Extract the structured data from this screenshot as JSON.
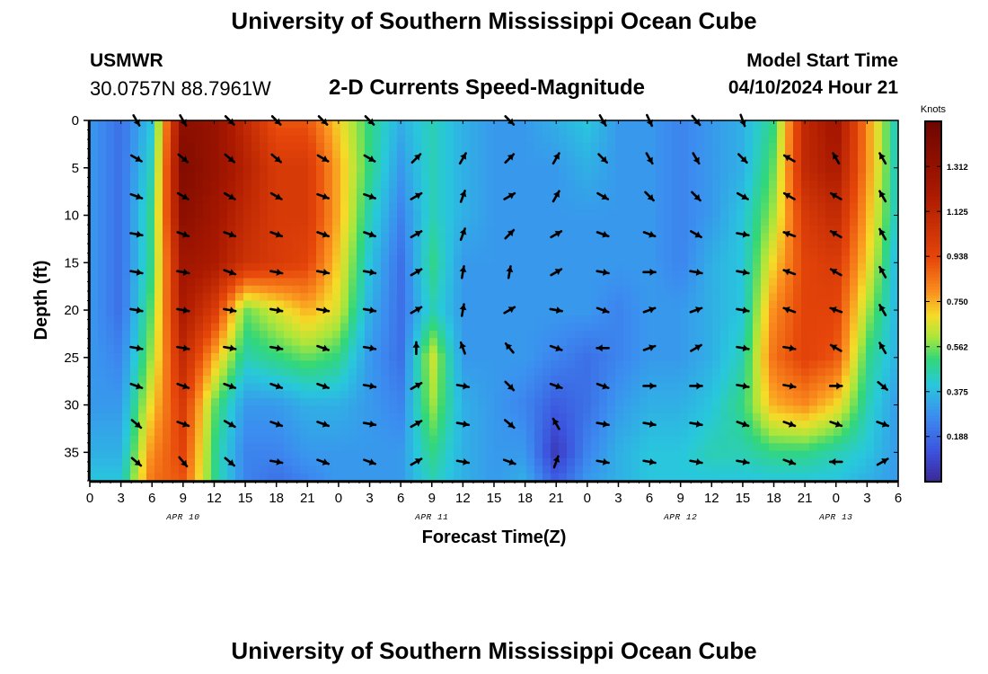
{
  "header": {
    "title": "University of Southern Mississippi Ocean Cube",
    "station_name": "USMWR",
    "station_coords": "30.0757N  88.7961W",
    "product": "2-D Currents Speed-Magnitude",
    "model_start_label": "Model Start Time",
    "model_start_value": "04/10/2024 Hour 21"
  },
  "footer": {
    "title": "University of Southern Mississippi Ocean Cube"
  },
  "colors": {
    "low": "#3b3bb0",
    "mid": "#3ad66e",
    "high": "#7a0e00",
    "arrow": "#000000"
  },
  "chart_data": {
    "type": "heatmap",
    "title": "2-D Currents Speed-Magnitude",
    "xlabel": "Forecast Time(Z)",
    "ylabel": "Depth (ft)",
    "x_tick_labels": [
      "0",
      "3",
      "6",
      "9",
      "12",
      "15",
      "18",
      "21",
      "0",
      "3",
      "6",
      "9",
      "12",
      "15",
      "18",
      "21",
      "0",
      "3",
      "6",
      "9",
      "12",
      "15",
      "18",
      "21",
      "0",
      "3",
      "6"
    ],
    "x_range_hours": [
      0,
      78
    ],
    "date_labels": [
      {
        "label": "APR 10",
        "hour": 9
      },
      {
        "label": "APR 11",
        "hour": 33
      },
      {
        "label": "APR 12",
        "hour": 57
      },
      {
        "label": "APR 13",
        "hour": 72
      }
    ],
    "y_ticks": [
      0,
      5,
      10,
      15,
      20,
      25,
      30,
      35
    ],
    "y_range_ft": [
      0,
      38
    ],
    "colorbar": {
      "unit": "Knots",
      "range": [
        0.0,
        1.5
      ],
      "tick_values": [
        0.188,
        0.375,
        0.562,
        0.75,
        0.938,
        1.125,
        1.312
      ],
      "tick_labels": [
        "0.188",
        "0.375",
        "0.562",
        "0.750",
        "0.938",
        "1.125",
        "1.312"
      ]
    },
    "speed_grid": {
      "x_hours": [
        0,
        3,
        6,
        9,
        12,
        15,
        18,
        21,
        24,
        27,
        30,
        33,
        36,
        39,
        42,
        45,
        48,
        51,
        54,
        57,
        60,
        63,
        66,
        69,
        72,
        75,
        78
      ],
      "depths_ft": [
        0,
        5,
        10,
        15,
        20,
        25,
        30,
        35,
        38
      ],
      "values": [
        [
          0.3,
          0.2,
          0.4,
          1.35,
          1.3,
          1.1,
          0.9,
          0.9,
          0.7,
          0.5,
          0.35,
          0.45,
          0.35,
          0.3,
          0.3,
          0.35,
          0.4,
          0.3,
          0.3,
          0.25,
          0.3,
          0.35,
          0.5,
          1.1,
          1.25,
          0.8,
          0.4
        ],
        [
          0.3,
          0.2,
          0.45,
          1.4,
          1.3,
          1.15,
          1.0,
          1.0,
          0.75,
          0.5,
          0.3,
          0.45,
          0.35,
          0.3,
          0.3,
          0.3,
          0.35,
          0.3,
          0.3,
          0.25,
          0.3,
          0.35,
          0.55,
          1.1,
          1.2,
          0.8,
          0.4
        ],
        [
          0.3,
          0.2,
          0.5,
          1.35,
          1.25,
          1.1,
          1.0,
          1.0,
          0.75,
          0.45,
          0.25,
          0.45,
          0.35,
          0.3,
          0.3,
          0.3,
          0.3,
          0.3,
          0.3,
          0.25,
          0.3,
          0.4,
          0.6,
          1.0,
          1.1,
          0.75,
          0.4
        ],
        [
          0.3,
          0.2,
          0.5,
          1.25,
          1.2,
          1.05,
          1.0,
          0.95,
          0.7,
          0.4,
          0.2,
          0.5,
          0.3,
          0.3,
          0.3,
          0.3,
          0.3,
          0.3,
          0.3,
          0.25,
          0.35,
          0.4,
          0.7,
          0.95,
          1.0,
          0.7,
          0.35
        ],
        [
          0.3,
          0.2,
          0.55,
          1.2,
          1.0,
          0.55,
          0.65,
          0.75,
          0.65,
          0.35,
          0.2,
          0.45,
          0.3,
          0.3,
          0.3,
          0.3,
          0.3,
          0.25,
          0.3,
          0.3,
          0.35,
          0.4,
          0.8,
          0.95,
          0.95,
          0.6,
          0.35
        ],
        [
          0.3,
          0.25,
          0.6,
          1.1,
          0.75,
          0.45,
          0.5,
          0.55,
          0.5,
          0.3,
          0.2,
          0.65,
          0.3,
          0.3,
          0.3,
          0.25,
          0.2,
          0.25,
          0.3,
          0.3,
          0.35,
          0.45,
          0.85,
          0.95,
          0.9,
          0.5,
          0.35
        ],
        [
          0.3,
          0.3,
          0.7,
          1.0,
          0.55,
          0.3,
          0.3,
          0.35,
          0.35,
          0.3,
          0.25,
          0.6,
          0.35,
          0.3,
          0.25,
          0.15,
          0.2,
          0.3,
          0.35,
          0.35,
          0.4,
          0.5,
          0.75,
          0.8,
          0.7,
          0.45,
          0.3
        ],
        [
          0.35,
          0.35,
          0.8,
          0.95,
          0.5,
          0.25,
          0.25,
          0.3,
          0.3,
          0.3,
          0.3,
          0.5,
          0.35,
          0.3,
          0.3,
          0.05,
          0.25,
          0.35,
          0.4,
          0.4,
          0.45,
          0.45,
          0.5,
          0.5,
          0.45,
          0.4,
          0.3
        ],
        [
          0.4,
          0.4,
          0.85,
          0.9,
          0.5,
          0.25,
          0.2,
          0.25,
          0.3,
          0.3,
          0.3,
          0.45,
          0.35,
          0.3,
          0.35,
          0.15,
          0.3,
          0.35,
          0.4,
          0.4,
          0.4,
          0.4,
          0.4,
          0.4,
          0.4,
          0.35,
          0.3
        ]
      ]
    },
    "current_vectors": {
      "x_hours": [
        4.5,
        9,
        13.5,
        18,
        22.5,
        27,
        31.5,
        36,
        40.5,
        45,
        49.5,
        54,
        58.5,
        63,
        67.5,
        72,
        76.5
      ],
      "depths_ft": [
        0,
        4,
        8,
        12,
        16,
        20,
        24,
        28,
        32,
        36
      ],
      "direction_deg": [
        [
          150,
          150,
          135,
          135,
          135,
          135,
          null,
          null,
          135,
          null,
          150,
          155,
          140,
          160,
          null,
          null,
          null
        ],
        [
          120,
          130,
          130,
          130,
          120,
          120,
          45,
          30,
          45,
          30,
          135,
          150,
          150,
          135,
          300,
          330,
          330
        ],
        [
          110,
          120,
          120,
          120,
          110,
          110,
          60,
          20,
          60,
          30,
          120,
          135,
          135,
          120,
          300,
          300,
          330
        ],
        [
          100,
          110,
          110,
          110,
          110,
          110,
          60,
          20,
          45,
          60,
          110,
          110,
          120,
          100,
          290,
          300,
          330
        ],
        [
          100,
          100,
          110,
          100,
          100,
          100,
          60,
          10,
          10,
          60,
          100,
          90,
          100,
          100,
          290,
          300,
          330
        ],
        [
          100,
          100,
          100,
          100,
          100,
          100,
          60,
          10,
          60,
          100,
          110,
          70,
          70,
          100,
          290,
          290,
          330
        ],
        [
          100,
          100,
          100,
          100,
          110,
          100,
          0,
          340,
          320,
          110,
          270,
          70,
          60,
          100,
          100,
          300,
          330
        ],
        [
          110,
          110,
          110,
          110,
          110,
          100,
          60,
          100,
          135,
          110,
          110,
          90,
          90,
          100,
          100,
          90,
          130
        ],
        [
          130,
          110,
          120,
          110,
          110,
          100,
          60,
          100,
          130,
          330,
          100,
          100,
          100,
          110,
          110,
          110,
          110
        ],
        [
          130,
          140,
          130,
          100,
          110,
          110,
          60,
          100,
          110,
          20,
          100,
          100,
          100,
          100,
          110,
          270,
          60
        ]
      ]
    }
  }
}
